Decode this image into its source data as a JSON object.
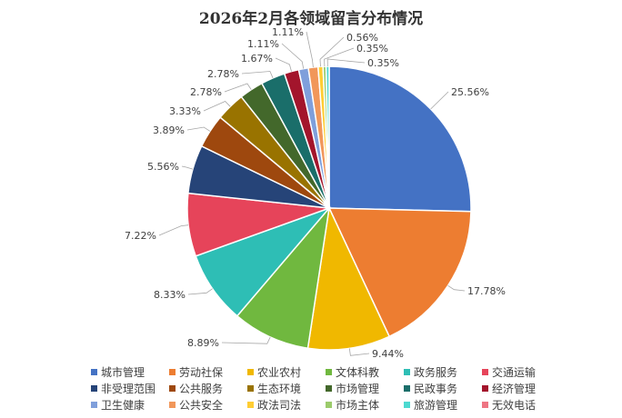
{
  "chart_data": {
    "type": "pie",
    "title": "2026年2月各领域留言分布情况",
    "legend_position": "bottom",
    "categories": [
      "城市管理",
      "劳动社保",
      "农业农村",
      "文体科教",
      "政务服务",
      "交通运输",
      "非受理范围",
      "公共服务",
      "生态环境",
      "市场管理",
      "民政事务",
      "经济管理",
      "卫生健康",
      "公共安全",
      "政法司法",
      "市场主体",
      "旅游管理",
      "无效电话"
    ],
    "values": [
      25.56,
      17.78,
      9.44,
      8.89,
      8.33,
      7.22,
      5.56,
      3.89,
      3.33,
      2.78,
      2.78,
      1.67,
      1.11,
      1.11,
      0.56,
      0.35,
      0.35,
      0
    ],
    "labels": [
      "25.56%",
      "17.78%",
      "9.44%",
      "8.89%",
      "8.33%",
      "7.22%",
      "5.56%",
      "3.89%",
      "3.33%",
      "2.78%",
      "2.78%",
      "1.67%",
      "1.11%",
      "1.11%",
      "0.56%",
      "0.35%",
      "0.35%",
      ""
    ],
    "colors": [
      "#4472C4",
      "#ED7D31",
      "#F0B800",
      "#70B83F",
      "#2EBEB5",
      "#E6445A",
      "#264478",
      "#9E480E",
      "#997300",
      "#43682B",
      "#1A6E6A",
      "#A3152C",
      "#7F9FDB",
      "#F1975A",
      "#FFCD33",
      "#9BCB6B",
      "#4DD9D0",
      "#EE7583"
    ]
  }
}
